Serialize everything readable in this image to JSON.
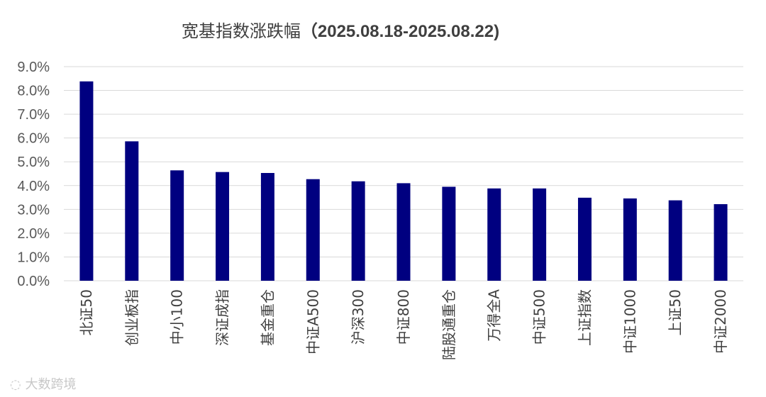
{
  "chart_data": {
    "type": "bar",
    "title": "宽基指数涨跌幅",
    "title_range": "（2025.08.18-2025.08.22)",
    "categories": [
      "北证50",
      "创业板指",
      "中小100",
      "深证成指",
      "基金重仓",
      "中证A500",
      "沪深300",
      "中证800",
      "陆股通重仓",
      "万得全A",
      "中证500",
      "上证指数",
      "中证1000",
      "上证50",
      "中证2000"
    ],
    "values": [
      8.38,
      5.86,
      4.64,
      4.57,
      4.53,
      4.27,
      4.18,
      4.1,
      3.95,
      3.88,
      3.88,
      3.49,
      3.46,
      3.38,
      3.22
    ],
    "ylim": [
      0,
      9
    ],
    "yticks": [
      "0.0%",
      "1.0%",
      "2.0%",
      "3.0%",
      "4.0%",
      "5.0%",
      "6.0%",
      "7.0%",
      "8.0%",
      "9.0%"
    ],
    "grid": true,
    "bar_color": "#000080"
  },
  "watermark": "大数跨境"
}
